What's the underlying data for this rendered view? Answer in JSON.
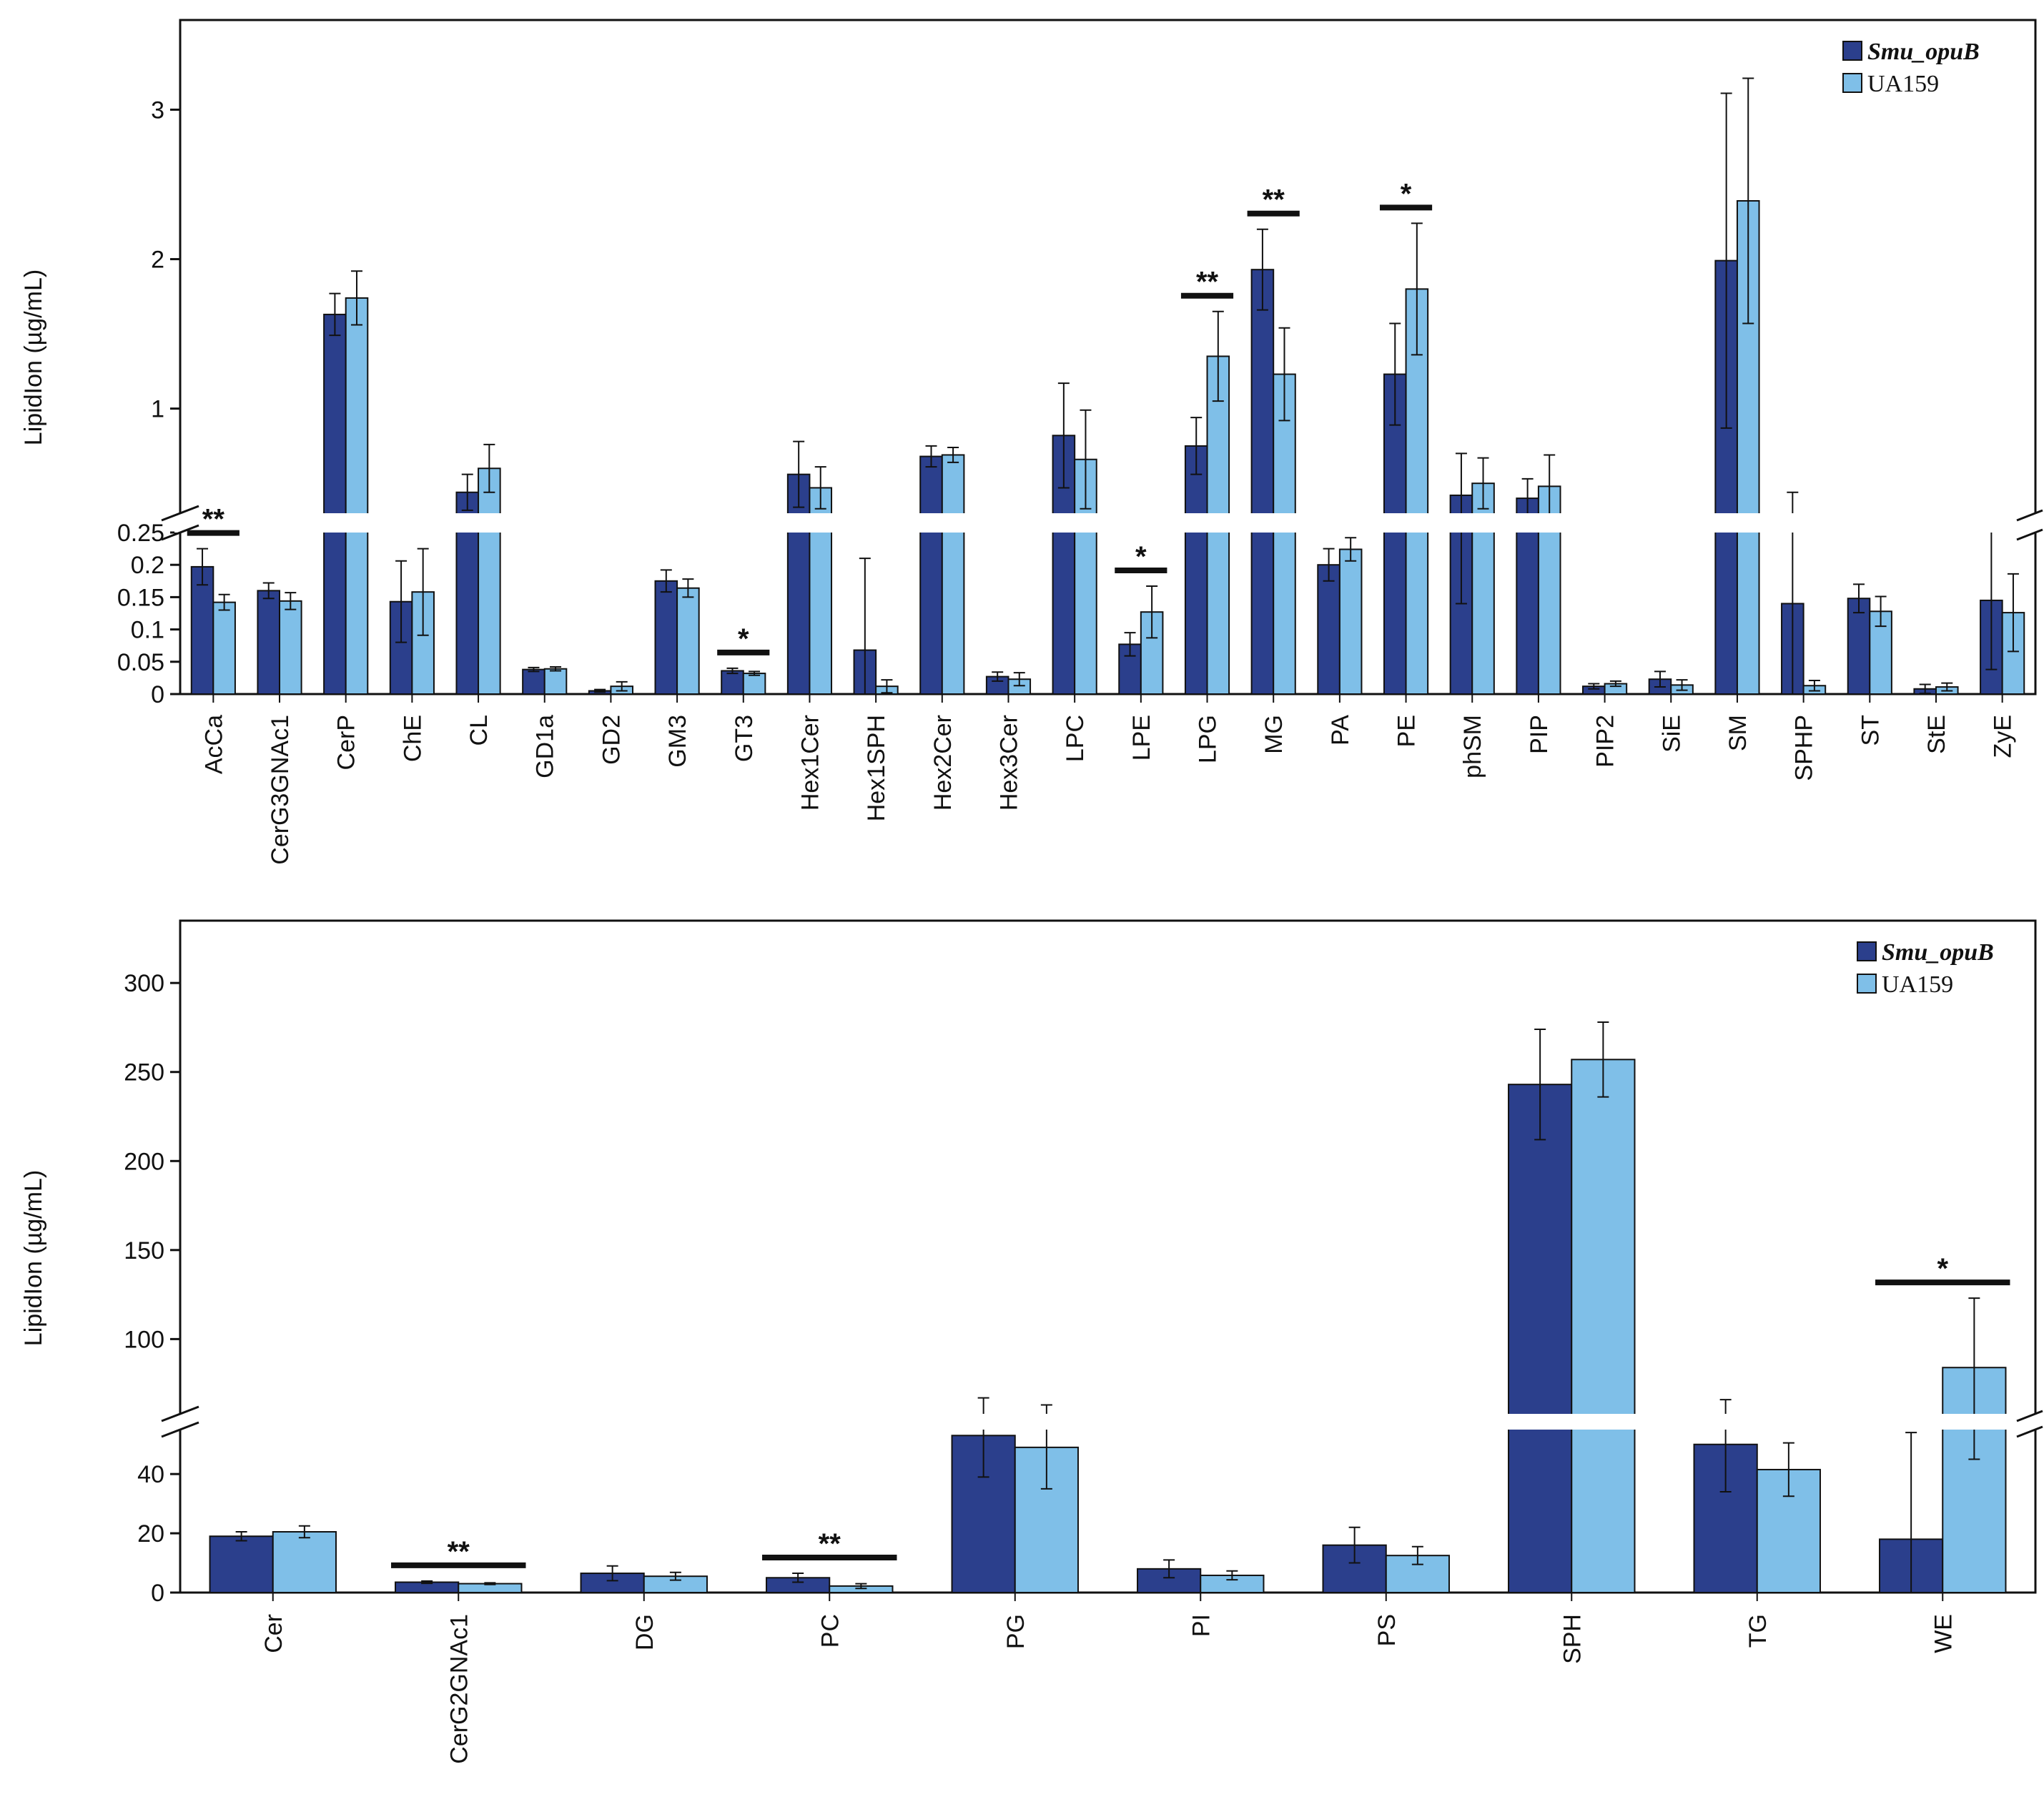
{
  "colors": {
    "smu": "#2b3f8c",
    "ua": "#7fbfe8",
    "axis": "#111111"
  },
  "legend": {
    "series1": "Smu_opuB",
    "series2": "UA159"
  },
  "chart_data": [
    {
      "type": "bar",
      "ylabel": "LipidIon (µg/mL)",
      "y_ticks_lower": [
        "0",
        "0.05",
        "0.1",
        "0.15",
        "0.2",
        "0.25"
      ],
      "y_ticks_upper": [
        "1",
        "2",
        "3"
      ],
      "lower_range": [
        0,
        0.25
      ],
      "upper_range": [
        0.3,
        3.6
      ],
      "categories": [
        "AcCa",
        "CerG3GNAc1",
        "CerP",
        "ChE",
        "CL",
        "GD1a",
        "GD2",
        "GM3",
        "GT3",
        "Hex1Cer",
        "Hex1SPH",
        "Hex2Cer",
        "Hex3Cer",
        "LPC",
        "LPE",
        "LPG",
        "MG",
        "PA",
        "PE",
        "phSM",
        "PIP",
        "PIP2",
        "SiE",
        "SM",
        "SPHP",
        "ST",
        "StE",
        "ZyE"
      ],
      "series": [
        {
          "name": "Smu_opuB",
          "values": [
            0.197,
            0.16,
            1.63,
            0.143,
            0.44,
            0.038,
            0.005,
            0.175,
            0.036,
            0.56,
            0.068,
            0.68,
            0.027,
            0.82,
            0.077,
            0.75,
            1.93,
            0.2,
            1.23,
            0.42,
            0.4,
            0.012,
            0.023,
            1.99,
            0.14,
            0.148,
            0.008,
            0.145
          ],
          "errors": [
            0.028,
            0.012,
            0.14,
            0.063,
            0.12,
            0.003,
            0.002,
            0.017,
            0.004,
            0.22,
            0.142,
            0.07,
            0.007,
            0.35,
            0.018,
            0.19,
            0.27,
            0.025,
            0.34,
            0.28,
            0.13,
            0.004,
            0.012,
            1.12,
            0.3,
            0.022,
            0.007,
            0.107
          ]
        },
        {
          "name": "UA159",
          "values": [
            0.142,
            0.144,
            1.74,
            0.158,
            0.6,
            0.039,
            0.012,
            0.164,
            0.032,
            0.47,
            0.012,
            0.69,
            0.023,
            0.66,
            0.127,
            1.35,
            1.23,
            0.224,
            1.8,
            0.5,
            0.48,
            0.016,
            0.014,
            2.39,
            0.013,
            0.128,
            0.011,
            0.126
          ],
          "errors": [
            0.012,
            0.013,
            0.18,
            0.067,
            0.16,
            0.003,
            0.007,
            0.014,
            0.003,
            0.14,
            0.01,
            0.05,
            0.01,
            0.33,
            0.04,
            0.3,
            0.31,
            0.018,
            0.44,
            0.17,
            0.21,
            0.004,
            0.008,
            0.82,
            0.008,
            0.023,
            0.006,
            0.06
          ]
        }
      ],
      "significance": [
        {
          "category": "AcCa",
          "label": "**"
        },
        {
          "category": "GT3",
          "label": "*"
        },
        {
          "category": "LPE",
          "label": "*"
        },
        {
          "category": "LPG",
          "label": "**"
        },
        {
          "category": "MG",
          "label": "**"
        },
        {
          "category": "PE",
          "label": "*"
        }
      ]
    },
    {
      "type": "bar",
      "ylabel": "LipidIon (µg/mL)",
      "y_ticks_lower": [
        "0",
        "20",
        "40"
      ],
      "y_ticks_upper": [
        "100",
        "150",
        "200",
        "250",
        "300"
      ],
      "lower_range": [
        0,
        55
      ],
      "upper_range": [
        58,
        335
      ],
      "categories": [
        "Cer",
        "CerG2GNAc1",
        "DG",
        "PC",
        "PG",
        "PI",
        "PS",
        "SPH",
        "TG",
        "WE"
      ],
      "series": [
        {
          "name": "Smu_opuB",
          "values": [
            19,
            3.5,
            6.5,
            5,
            53,
            8,
            16,
            243,
            50,
            18
          ],
          "errors": [
            1.5,
            0.4,
            2.5,
            1.5,
            14,
            3,
            6,
            31,
            16,
            36
          ]
        },
        {
          "name": "UA159",
          "values": [
            20.5,
            3,
            5.5,
            2.2,
            49,
            5.8,
            12.5,
            257,
            41.5,
            84
          ],
          "errors": [
            2,
            0.3,
            1.3,
            0.8,
            14,
            1.5,
            3,
            21,
            9,
            39
          ]
        }
      ],
      "significance": [
        {
          "category": "CerG2GNAc1",
          "label": "**"
        },
        {
          "category": "PC",
          "label": "**"
        },
        {
          "category": "WE",
          "label": "*"
        }
      ]
    }
  ]
}
